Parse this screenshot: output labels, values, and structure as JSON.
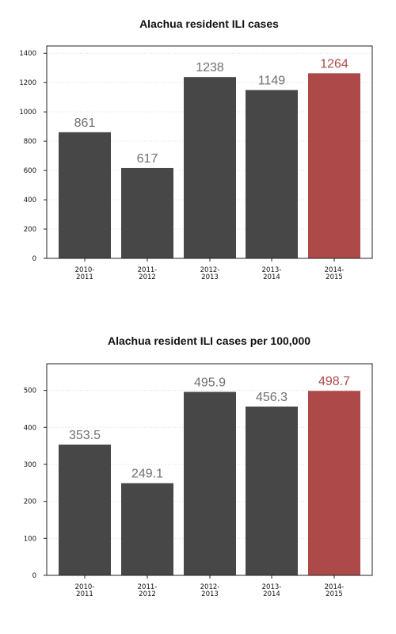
{
  "colors": {
    "bar_default": "#474747",
    "bar_highlight": "#ad4949",
    "label_default": "#707070",
    "label_highlight": "#ad4949",
    "grid": "#dddddd"
  },
  "chart_data": [
    {
      "type": "bar",
      "title": "Alachua resident ILI cases",
      "xlabel": "",
      "ylabel": "",
      "categories": [
        [
          "2010-",
          "2011"
        ],
        [
          "2011-",
          "2012"
        ],
        [
          "2012-",
          "2013"
        ],
        [
          "2013-",
          "2014"
        ],
        [
          "2014-",
          "2015"
        ]
      ],
      "values": [
        861,
        617,
        1238,
        1149,
        1264
      ],
      "value_labels": [
        "861",
        "617",
        "1238",
        "1149",
        "1264"
      ],
      "highlight_index": 4,
      "ylim": [
        0,
        1450
      ],
      "yticks": [
        0,
        200,
        400,
        600,
        800,
        1000,
        1200,
        1400
      ],
      "grid": "horizontal-dotted",
      "legend": "none"
    },
    {
      "type": "bar",
      "title": "Alachua resident ILI cases per 100,000",
      "xlabel": "",
      "ylabel": "",
      "categories": [
        [
          "2010-",
          "2011"
        ],
        [
          "2011-",
          "2012"
        ],
        [
          "2012-",
          "2013"
        ],
        [
          "2013-",
          "2014"
        ],
        [
          "2014-",
          "2015"
        ]
      ],
      "values": [
        353.5,
        249.1,
        495.9,
        456.3,
        498.7
      ],
      "value_labels": [
        "353.5",
        "249.1",
        "495.9",
        "456.3",
        "498.7"
      ],
      "highlight_index": 4,
      "ylim": [
        0,
        572
      ],
      "yticks": [
        0,
        100,
        200,
        300,
        400,
        500
      ],
      "grid": "horizontal-dotted",
      "legend": "none"
    }
  ]
}
